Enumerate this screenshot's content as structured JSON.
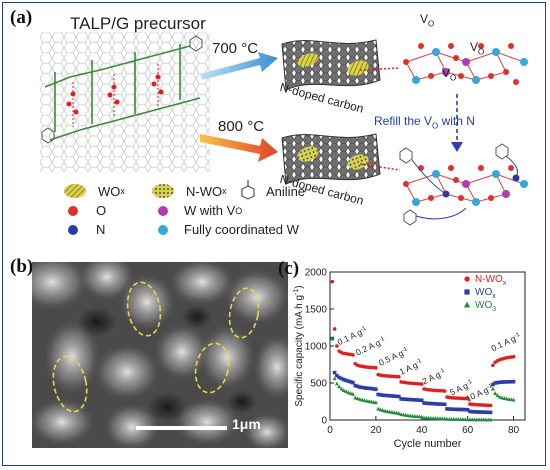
{
  "panel_a": {
    "label": "(a)",
    "precursor_title": "TALP/G precursor",
    "temp_top": "700 °C",
    "temp_bottom": "800 °C",
    "sheet_label_top": "N-doped carbon",
    "sheet_label_bottom": "N-doped carbon",
    "refill_label": "Refill the V",
    "refill_sub": "O",
    "refill_suffix": " with N",
    "vo_symbol": "V",
    "vo_sub": "O",
    "legend": [
      {
        "label": "WO",
        "sub": "x",
        "icon": "wox-ellipse-icon",
        "color": "#c8c24a"
      },
      {
        "label": "N-WO",
        "sub": "x",
        "icon": "nwox-ellipse-icon",
        "color": "#c8c24a"
      },
      {
        "label": "Aniline",
        "icon": "aniline-icon"
      },
      {
        "label": "O",
        "icon": "red-sphere-icon",
        "color": "#e0302a"
      },
      {
        "label": "W with V",
        "sub": "O",
        "icon": "magenta-sphere-icon",
        "color": "#b03cb0"
      },
      {
        "label": "N",
        "icon": "blue-sphere-icon",
        "color": "#283c9c"
      },
      {
        "label": "Fully coordinated W",
        "icon": "cyan-sphere-icon",
        "color": "#35a8d8"
      }
    ]
  },
  "panel_b": {
    "label": "(b)",
    "scale_label": "1μm"
  },
  "panel_c": {
    "label": "(c)",
    "chart_data": {
      "type": "scatter",
      "xlabel": "Cycle number",
      "ylabel": "Specific capacity (mA h g",
      "ylabel_sup": "-1",
      "ylabel_end": ")",
      "xlim": [
        0,
        85
      ],
      "ylim": [
        0,
        2000
      ],
      "xticks": [
        0,
        20,
        40,
        60,
        80
      ],
      "yticks": [
        0,
        500,
        1000,
        1500,
        2000
      ],
      "rate_labels": [
        {
          "text": "0.1 A g",
          "sup": "-1",
          "x": 4,
          "y": 1010
        },
        {
          "text": "0.2 A g",
          "sup": "-1",
          "x": 12,
          "y": 870
        },
        {
          "text": "0.5 A g",
          "sup": "-1",
          "x": 22,
          "y": 730
        },
        {
          "text": "1 A g",
          "sup": "-1",
          "x": 31,
          "y": 610
        },
        {
          "text": "2 A g",
          "sup": "-1",
          "x": 41,
          "y": 480
        },
        {
          "text": "5 A g",
          "sup": "-1",
          "x": 53,
          "y": 330
        },
        {
          "text": "10 A g",
          "sup": "-1",
          "x": 60,
          "y": 245
        },
        {
          "text": "0.1 A g",
          "sup": "-1",
          "x": 71,
          "y": 925
        }
      ],
      "series": [
        {
          "name": "N-WO",
          "name_sub": "x",
          "color": "#e0201e",
          "marker": "circle",
          "values": [
            [
              1,
              1870
            ],
            [
              2,
              1230
            ],
            [
              3,
              1000
            ],
            [
              4,
              930
            ],
            [
              5,
              910
            ],
            [
              6,
              900
            ],
            [
              7,
              895
            ],
            [
              8,
              890
            ],
            [
              9,
              885
            ],
            [
              10,
              880
            ],
            [
              11,
              760
            ],
            [
              12,
              740
            ],
            [
              13,
              730
            ],
            [
              14,
              725
            ],
            [
              15,
              720
            ],
            [
              16,
              715
            ],
            [
              17,
              712
            ],
            [
              18,
              710
            ],
            [
              19,
              708
            ],
            [
              20,
              705
            ],
            [
              21,
              615
            ],
            [
              22,
              605
            ],
            [
              23,
              600
            ],
            [
              24,
              598
            ],
            [
              25,
              595
            ],
            [
              26,
              592
            ],
            [
              27,
              590
            ],
            [
              28,
              588
            ],
            [
              29,
              586
            ],
            [
              30,
              585
            ],
            [
              31,
              515
            ],
            [
              32,
              510
            ],
            [
              33,
              505
            ],
            [
              34,
              500
            ],
            [
              35,
              498
            ],
            [
              36,
              495
            ],
            [
              37,
              492
            ],
            [
              38,
              490
            ],
            [
              39,
              488
            ],
            [
              40,
              485
            ],
            [
              41,
              420
            ],
            [
              42,
              412
            ],
            [
              43,
              408
            ],
            [
              44,
              405
            ],
            [
              45,
              402
            ],
            [
              46,
              400
            ],
            [
              47,
              398
            ],
            [
              48,
              396
            ],
            [
              49,
              395
            ],
            [
              50,
              392
            ],
            [
              51,
              310
            ],
            [
              52,
              305
            ],
            [
              53,
              300
            ],
            [
              54,
              298
            ],
            [
              55,
              296
            ],
            [
              56,
              295
            ],
            [
              57,
              293
            ],
            [
              58,
              292
            ],
            [
              59,
              290
            ],
            [
              60,
              288
            ],
            [
              61,
              215
            ],
            [
              62,
              210
            ],
            [
              63,
              208
            ],
            [
              64,
              206
            ],
            [
              65,
              205
            ],
            [
              66,
              203
            ],
            [
              67,
              202
            ],
            [
              68,
              200
            ],
            [
              69,
              198
            ],
            [
              70,
              196
            ],
            [
              71,
              740
            ],
            [
              72,
              780
            ],
            [
              73,
              800
            ],
            [
              74,
              815
            ],
            [
              75,
              825
            ],
            [
              76,
              832
            ],
            [
              77,
              840
            ],
            [
              78,
              846
            ],
            [
              79,
              850
            ],
            [
              80,
              855
            ]
          ]
        },
        {
          "name": "WO",
          "name_sub": "x",
          "color": "#2d3ea6",
          "marker": "square",
          "values": [
            [
              1,
              1100
            ],
            [
              2,
              640
            ],
            [
              3,
              600
            ],
            [
              4,
              575
            ],
            [
              5,
              560
            ],
            [
              6,
              545
            ],
            [
              7,
              535
            ],
            [
              8,
              525
            ],
            [
              9,
              515
            ],
            [
              10,
              505
            ],
            [
              11,
              465
            ],
            [
              12,
              455
            ],
            [
              13,
              445
            ],
            [
              14,
              440
            ],
            [
              15,
              435
            ],
            [
              16,
              430
            ],
            [
              17,
              428
            ],
            [
              18,
              425
            ],
            [
              19,
              420
            ],
            [
              20,
              415
            ],
            [
              21,
              345
            ],
            [
              22,
              340
            ],
            [
              23,
              335
            ],
            [
              24,
              332
            ],
            [
              25,
              330
            ],
            [
              26,
              328
            ],
            [
              27,
              325
            ],
            [
              28,
              322
            ],
            [
              29,
              320
            ],
            [
              30,
              318
            ],
            [
              31,
              285
            ],
            [
              32,
              282
            ],
            [
              33,
              280
            ],
            [
              34,
              278
            ],
            [
              35,
              276
            ],
            [
              36,
              274
            ],
            [
              37,
              272
            ],
            [
              38,
              270
            ],
            [
              39,
              268
            ],
            [
              40,
              266
            ],
            [
              41,
              230
            ],
            [
              42,
              226
            ],
            [
              43,
              224
            ],
            [
              44,
              222
            ],
            [
              45,
              220
            ],
            [
              46,
              218
            ],
            [
              47,
              216
            ],
            [
              48,
              215
            ],
            [
              49,
              214
            ],
            [
              50,
              212
            ],
            [
              51,
              150
            ],
            [
              52,
              148
            ],
            [
              53,
              146
            ],
            [
              54,
              145
            ],
            [
              55,
              144
            ],
            [
              56,
              143
            ],
            [
              57,
              142
            ],
            [
              58,
              141
            ],
            [
              59,
              140
            ],
            [
              60,
              138
            ],
            [
              61,
              115
            ],
            [
              62,
              112
            ],
            [
              63,
              110
            ],
            [
              64,
              109
            ],
            [
              65,
              108
            ],
            [
              66,
              107
            ],
            [
              67,
              106
            ],
            [
              68,
              105
            ],
            [
              69,
              104
            ],
            [
              70,
              103
            ],
            [
              71,
              480
            ],
            [
              72,
              500
            ],
            [
              73,
              505
            ],
            [
              74,
              510
            ],
            [
              75,
              512
            ],
            [
              76,
              514
            ],
            [
              77,
              515
            ],
            [
              78,
              516
            ],
            [
              79,
              517
            ],
            [
              80,
              518
            ]
          ]
        },
        {
          "name": "WO",
          "name_sub": "3",
          "color": "#1e8c3a",
          "marker": "triangle",
          "values": [
            [
              1,
              1100
            ],
            [
              2,
              560
            ],
            [
              3,
              490
            ],
            [
              4,
              450
            ],
            [
              5,
              420
            ],
            [
              6,
              400
            ],
            [
              7,
              385
            ],
            [
              8,
              370
            ],
            [
              9,
              360
            ],
            [
              10,
              350
            ],
            [
              11,
              300
            ],
            [
              12,
              290
            ],
            [
              13,
              280
            ],
            [
              14,
              272
            ],
            [
              15,
              265
            ],
            [
              16,
              258
            ],
            [
              17,
              252
            ],
            [
              18,
              246
            ],
            [
              19,
              240
            ],
            [
              20,
              235
            ],
            [
              21,
              150
            ],
            [
              22,
              140
            ],
            [
              23,
              130
            ],
            [
              24,
              122
            ],
            [
              25,
              115
            ],
            [
              26,
              110
            ],
            [
              27,
              105
            ],
            [
              28,
              100
            ],
            [
              29,
              95
            ],
            [
              30,
              90
            ],
            [
              31,
              75
            ],
            [
              32,
              70
            ],
            [
              33,
              65
            ],
            [
              34,
              60
            ],
            [
              35,
              56
            ],
            [
              36,
              52
            ],
            [
              37,
              50
            ],
            [
              38,
              48
            ],
            [
              39,
              45
            ],
            [
              40,
              42
            ],
            [
              41,
              30
            ],
            [
              42,
              28
            ],
            [
              43,
              26
            ],
            [
              44,
              24
            ],
            [
              45,
              22
            ],
            [
              46,
              21
            ],
            [
              47,
              20
            ],
            [
              48,
              19
            ],
            [
              49,
              18
            ],
            [
              50,
              17
            ],
            [
              51,
              12
            ],
            [
              52,
              11
            ],
            [
              53,
              10
            ],
            [
              54,
              10
            ],
            [
              55,
              9
            ],
            [
              56,
              9
            ],
            [
              57,
              8
            ],
            [
              58,
              8
            ],
            [
              59,
              8
            ],
            [
              60,
              7
            ],
            [
              61,
              5
            ],
            [
              62,
              5
            ],
            [
              63,
              5
            ],
            [
              64,
              4
            ],
            [
              65,
              4
            ],
            [
              66,
              4
            ],
            [
              67,
              4
            ],
            [
              68,
              3
            ],
            [
              69,
              3
            ],
            [
              70,
              3
            ],
            [
              71,
              420
            ],
            [
              72,
              360
            ],
            [
              73,
              330
            ],
            [
              74,
              310
            ],
            [
              75,
              300
            ],
            [
              76,
              292
            ],
            [
              77,
              286
            ],
            [
              78,
              280
            ],
            [
              79,
              276
            ],
            [
              80,
              272
            ]
          ]
        }
      ]
    }
  }
}
